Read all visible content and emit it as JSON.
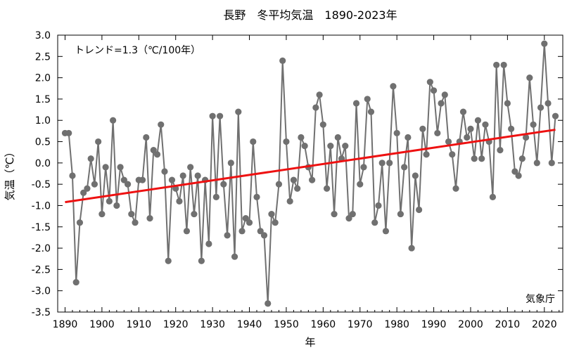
{
  "chart_data": {
    "type": "line",
    "title": "長野　冬平均気温　1890-2023年",
    "xlabel": "年",
    "ylabel": "気温（℃）",
    "trend_label": "トレンド=1.3（℃/100年）",
    "source_label": "気象庁",
    "xlim": [
      1888,
      2025
    ],
    "ylim": [
      -3.5,
      3.0
    ],
    "x_ticks": [
      1890,
      1900,
      1910,
      1920,
      1930,
      1940,
      1950,
      1960,
      1970,
      1980,
      1990,
      2000,
      2010,
      2020
    ],
    "y_ticks": [
      "3.0",
      "2.5",
      "2.0",
      "1.5",
      "1.0",
      "0.5",
      "0.0",
      "-0.5",
      "-1.0",
      "-1.5",
      "-2.0",
      "-2.5",
      "-3.0",
      "-3.5"
    ],
    "grid": false,
    "series": [
      {
        "color": "#707070",
        "x": [
          1890,
          1891,
          1892,
          1893,
          1894,
          1895,
          1896,
          1897,
          1898,
          1899,
          1900,
          1901,
          1902,
          1903,
          1904,
          1905,
          1906,
          1907,
          1908,
          1909,
          1910,
          1911,
          1912,
          1913,
          1914,
          1915,
          1916,
          1917,
          1918,
          1919,
          1920,
          1921,
          1922,
          1923,
          1924,
          1925,
          1926,
          1927,
          1928,
          1929,
          1930,
          1931,
          1932,
          1933,
          1934,
          1935,
          1936,
          1937,
          1938,
          1939,
          1940,
          1941,
          1942,
          1943,
          1944,
          1945,
          1946,
          1947,
          1948,
          1949,
          1950,
          1951,
          1952,
          1953,
          1954,
          1955,
          1956,
          1957,
          1958,
          1959,
          1960,
          1961,
          1962,
          1963,
          1964,
          1965,
          1966,
          1967,
          1968,
          1969,
          1970,
          1971,
          1972,
          1973,
          1974,
          1975,
          1976,
          1977,
          1978,
          1979,
          1980,
          1981,
          1982,
          1983,
          1984,
          1985,
          1986,
          1987,
          1988,
          1989,
          1990,
          1991,
          1992,
          1993,
          1994,
          1995,
          1996,
          1997,
          1998,
          1999,
          2000,
          2001,
          2002,
          2003,
          2004,
          2005,
          2006,
          2007,
          2008,
          2009,
          2010,
          2011,
          2012,
          2013,
          2014,
          2015,
          2016,
          2017,
          2018,
          2019,
          2020,
          2021,
          2022,
          2023
        ],
        "values": [
          0.7,
          0.7,
          -0.3,
          -2.8,
          -1.4,
          -0.7,
          -0.6,
          0.1,
          -0.5,
          0.5,
          -1.2,
          -0.1,
          -0.9,
          1.0,
          -1.0,
          -0.1,
          -0.4,
          -0.5,
          -1.2,
          -1.4,
          -0.4,
          -0.4,
          0.6,
          -1.3,
          0.3,
          0.2,
          0.9,
          -0.2,
          -2.3,
          -0.4,
          -0.6,
          -0.9,
          -0.3,
          -1.6,
          -0.1,
          -1.2,
          -0.3,
          -2.3,
          -0.4,
          -1.9,
          1.1,
          -0.8,
          1.1,
          -0.5,
          -1.7,
          0.0,
          -2.2,
          1.2,
          -1.6,
          -1.3,
          -1.4,
          0.5,
          -0.8,
          -1.6,
          -1.7,
          -3.3,
          -1.2,
          -1.4,
          -0.5,
          2.4,
          0.5,
          -0.9,
          -0.4,
          -0.6,
          0.6,
          0.4,
          -0.1,
          -0.4,
          1.3,
          1.6,
          0.9,
          -0.6,
          0.4,
          -1.2,
          0.6,
          0.1,
          0.4,
          -1.3,
          -1.2,
          1.4,
          -0.5,
          -0.1,
          1.5,
          1.2,
          -1.4,
          -1.0,
          0.0,
          -1.6,
          0.0,
          1.8,
          0.7,
          -1.2,
          -0.1,
          0.6,
          -2.0,
          -0.3,
          -1.1,
          0.8,
          0.2,
          1.9,
          1.7,
          0.7,
          1.4,
          1.6,
          0.5,
          0.2,
          -0.6,
          0.5,
          1.2,
          0.6,
          0.8,
          0.1,
          1.0,
          0.1,
          0.9,
          0.5,
          -0.8,
          2.3,
          0.3,
          2.3,
          1.4,
          0.8,
          -0.2,
          -0.3,
          0.1,
          0.6,
          2.0,
          0.9,
          0.0,
          1.3,
          2.8,
          1.4,
          0.0,
          1.1
        ]
      },
      {
        "color": "#ee1111",
        "x": [
          1890,
          2023
        ],
        "values": [
          -0.92,
          0.78
        ]
      }
    ]
  }
}
